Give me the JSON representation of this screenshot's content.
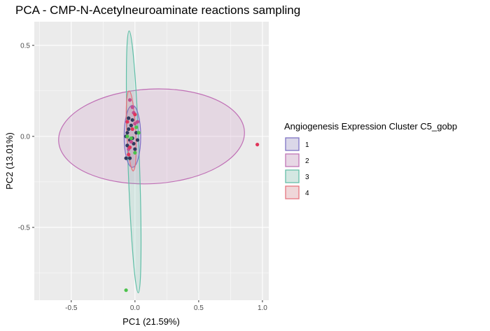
{
  "chart_data": {
    "type": "scatter",
    "title": "PCA - CMP-N-Acetylneuroaminate reactions sampling",
    "xlabel": "PC1 (21.59%)",
    "ylabel": "PC2 (13.01%)",
    "xlim": [
      -0.79,
      1.05
    ],
    "ylim": [
      -0.9,
      0.63
    ],
    "x_ticks": [
      -0.5,
      0.0,
      0.5,
      1.0
    ],
    "x_tick_labels": [
      "-0.5",
      "0.0",
      "0.5",
      "1.0"
    ],
    "y_ticks": [
      -0.5,
      0.0,
      0.5
    ],
    "y_tick_labels": [
      "-0.5",
      "0.0",
      "0.5"
    ],
    "grid": true,
    "legend": {
      "title": "Angiogenesis Expression Cluster C5_gobp",
      "position": "right"
    },
    "series": [
      {
        "name": "1",
        "color": "#7b6ec5",
        "fill": "#c9cde6",
        "ellipse": {
          "cx": -0.02,
          "cy": 0.0,
          "rx": 0.065,
          "ry": 0.17,
          "angle_deg": 0
        },
        "points": [
          [
            -0.07,
            0.0
          ],
          [
            -0.05,
            0.04
          ],
          [
            -0.04,
            -0.02
          ],
          [
            -0.06,
            -0.05
          ],
          [
            -0.03,
            0.06
          ],
          [
            -0.01,
            -0.04
          ],
          [
            0.01,
            0.02
          ],
          [
            -0.02,
            0.09
          ],
          [
            -0.05,
            0.1
          ],
          [
            0.0,
            -0.07
          ],
          [
            -0.07,
            -0.12
          ],
          [
            -0.04,
            -0.12
          ],
          [
            -0.02,
            -0.01
          ],
          [
            -0.06,
            0.02
          ],
          [
            0.02,
            -0.02
          ]
        ]
      },
      {
        "name": "2",
        "color": "#c070b6",
        "fill": "#e3cbe0",
        "ellipse": {
          "cx": 0.13,
          "cy": 0.0,
          "rx": 0.73,
          "ry": 0.26,
          "angle_deg": -3
        },
        "points": [
          [
            -0.04,
            0.2
          ],
          [
            -0.01,
            0.13
          ],
          [
            0.0,
            0.07
          ],
          [
            -0.03,
            -0.03
          ],
          [
            -0.02,
            0.16
          ],
          [
            -0.05,
            -0.07
          ],
          [
            0.02,
            0.08
          ]
        ]
      },
      {
        "name": "3",
        "color": "#5fbfa7",
        "fill": "#cde6df",
        "ellipse": {
          "cx": -0.01,
          "cy": -0.14,
          "rx": 0.045,
          "ry": 0.72,
          "angle_deg": -2
        },
        "points": [
          [
            -0.07,
            -0.845
          ],
          [
            0.01,
            0.05
          ],
          [
            -0.03,
            -0.01
          ],
          [
            0.03,
            0.02
          ],
          [
            -0.06,
            0.0
          ],
          [
            0.0,
            -0.09
          ]
        ]
      },
      {
        "name": "4",
        "color": "#e8707a",
        "fill": "#eccfd3",
        "ellipse": {
          "cx": -0.03,
          "cy": 0.03,
          "rx": 0.035,
          "ry": 0.22,
          "angle_deg": -3
        },
        "points": [
          [
            0.96,
            -0.045
          ],
          [
            -0.06,
            0.08
          ],
          [
            -0.04,
            -0.06
          ],
          [
            0.0,
            0.12
          ],
          [
            -0.05,
            -0.1
          ],
          [
            -0.02,
            0.04
          ]
        ]
      }
    ]
  }
}
